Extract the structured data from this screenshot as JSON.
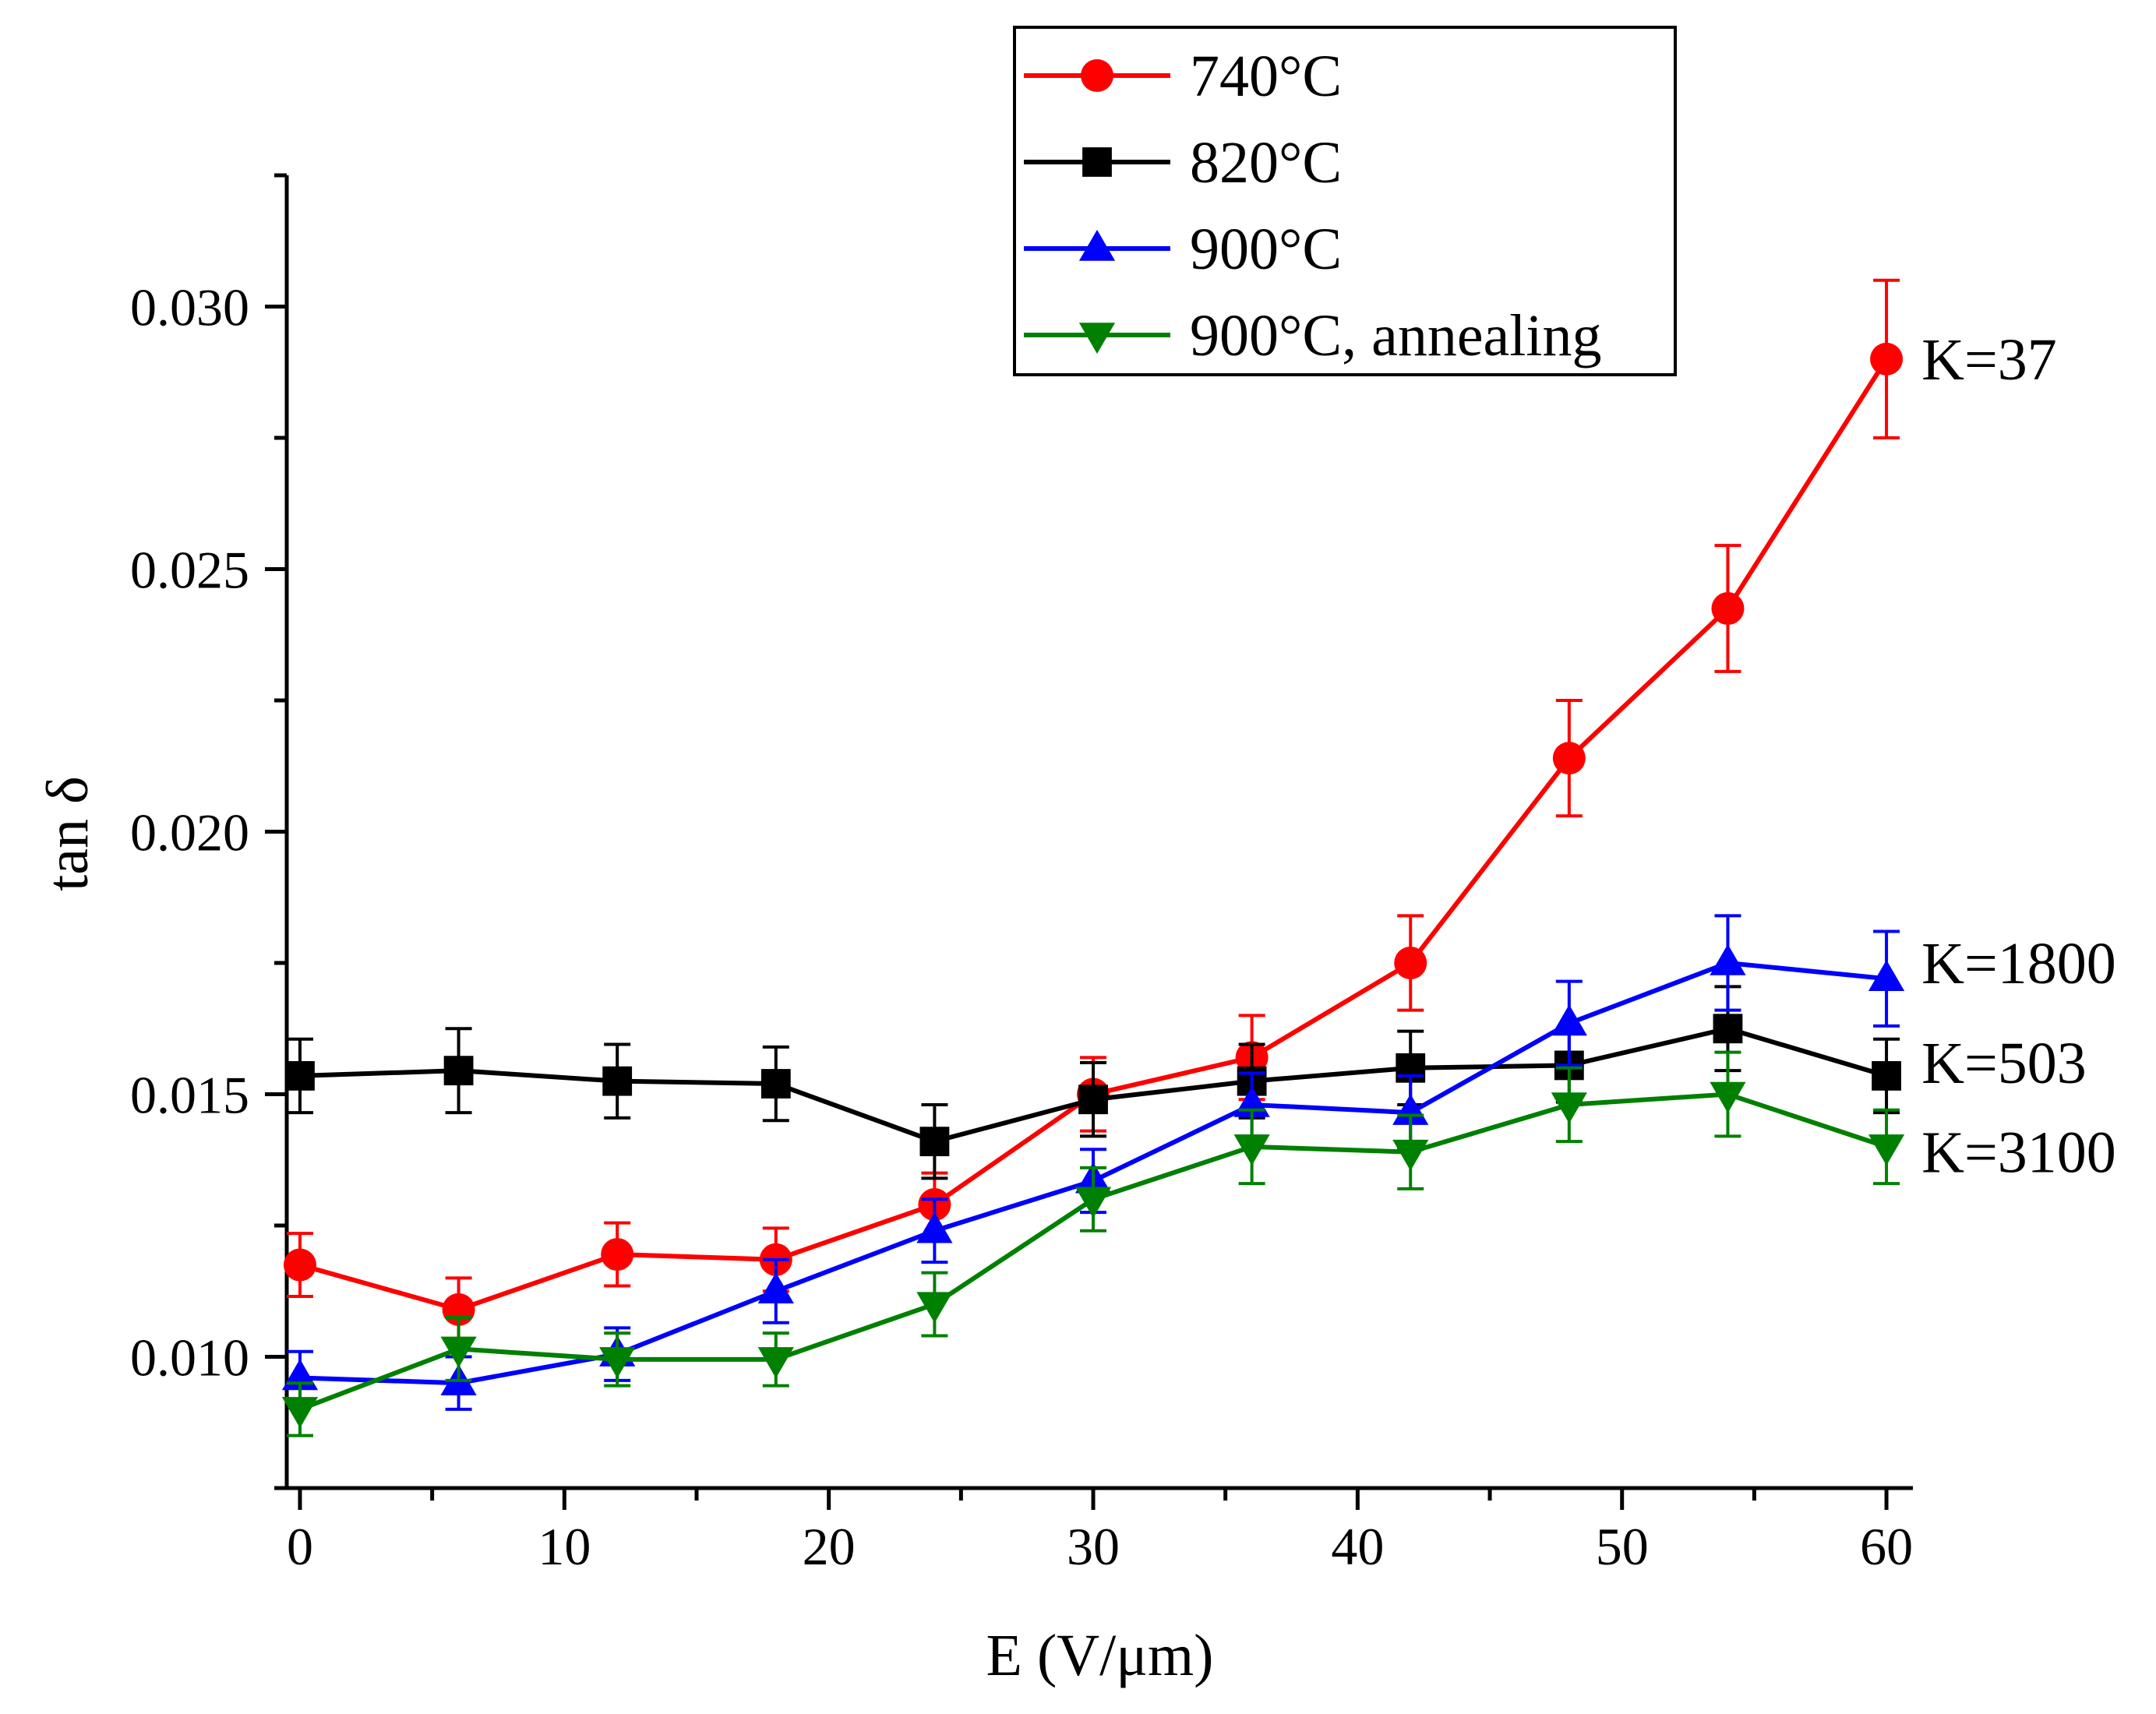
{
  "chart_data": {
    "type": "line",
    "title": "",
    "xlabel": "E (V/μm)",
    "ylabel": "tan δ",
    "xlim": [
      -0.5,
      61
    ],
    "ylim": [
      0.0075,
      0.0325
    ],
    "x_ticks": [
      0,
      10,
      20,
      30,
      40,
      50,
      60
    ],
    "x_tick_labels": [
      "0",
      "10",
      "20",
      "30",
      "40",
      "50",
      "60"
    ],
    "y_ticks": [
      0.01,
      0.015,
      0.02,
      0.025,
      0.03
    ],
    "y_tick_labels": [
      "0.010",
      "0.015",
      "0.020",
      "0.025",
      "0.030"
    ],
    "x": [
      0,
      6,
      12,
      18,
      24,
      30,
      36,
      42,
      48,
      54,
      60
    ],
    "legend_position": "top-center",
    "series": [
      {
        "name": "740°C",
        "color": "#ff0000",
        "marker": "circle",
        "values": [
          0.01175,
          0.0109,
          0.01195,
          0.01185,
          0.0129,
          0.015,
          0.0157,
          0.0175,
          0.0214,
          0.02425,
          0.029
        ],
        "errors": [
          0.0006,
          0.0006,
          0.0006,
          0.0006,
          0.0006,
          0.0007,
          0.0008,
          0.0009,
          0.0011,
          0.0012,
          0.0015
        ]
      },
      {
        "name": "820°C",
        "color": "#000000",
        "marker": "square",
        "values": [
          0.01535,
          0.01545,
          0.01525,
          0.0152,
          0.0141,
          0.0149,
          0.01525,
          0.0155,
          0.01555,
          0.01625,
          0.01535
        ],
        "errors": [
          0.0007,
          0.0008,
          0.0007,
          0.0007,
          0.0007,
          0.0007,
          0.0007,
          0.0007,
          0.0007,
          0.0008,
          0.0007
        ]
      },
      {
        "name": "900°C",
        "color": "#0000ff",
        "marker": "triangle-up",
        "values": [
          0.0096,
          0.0095,
          0.01005,
          0.01125,
          0.0124,
          0.01335,
          0.0148,
          0.01465,
          0.01635,
          0.0175,
          0.0172
        ],
        "errors": [
          0.0005,
          0.0005,
          0.0005,
          0.0006,
          0.0006,
          0.0006,
          0.0006,
          0.0007,
          0.0008,
          0.0009,
          0.0009
        ]
      },
      {
        "name": "900°C, annealing",
        "color": "#008000",
        "marker": "triangle-down",
        "values": [
          0.009,
          0.01015,
          0.00995,
          0.00995,
          0.011,
          0.013,
          0.014,
          0.0139,
          0.0148,
          0.015,
          0.014
        ],
        "errors": [
          0.0005,
          0.0006,
          0.0005,
          0.0005,
          0.0006,
          0.0006,
          0.0007,
          0.0007,
          0.0007,
          0.0008,
          0.0007
        ]
      }
    ],
    "annotations": [
      {
        "text": "K=37",
        "x": 60,
        "y": 0.029
      },
      {
        "text": "K=1800",
        "x": 60,
        "y": 0.0175
      },
      {
        "text": "K=503",
        "x": 60,
        "y": 0.0156
      },
      {
        "text": "K=3100",
        "x": 60,
        "y": 0.0139
      }
    ]
  }
}
